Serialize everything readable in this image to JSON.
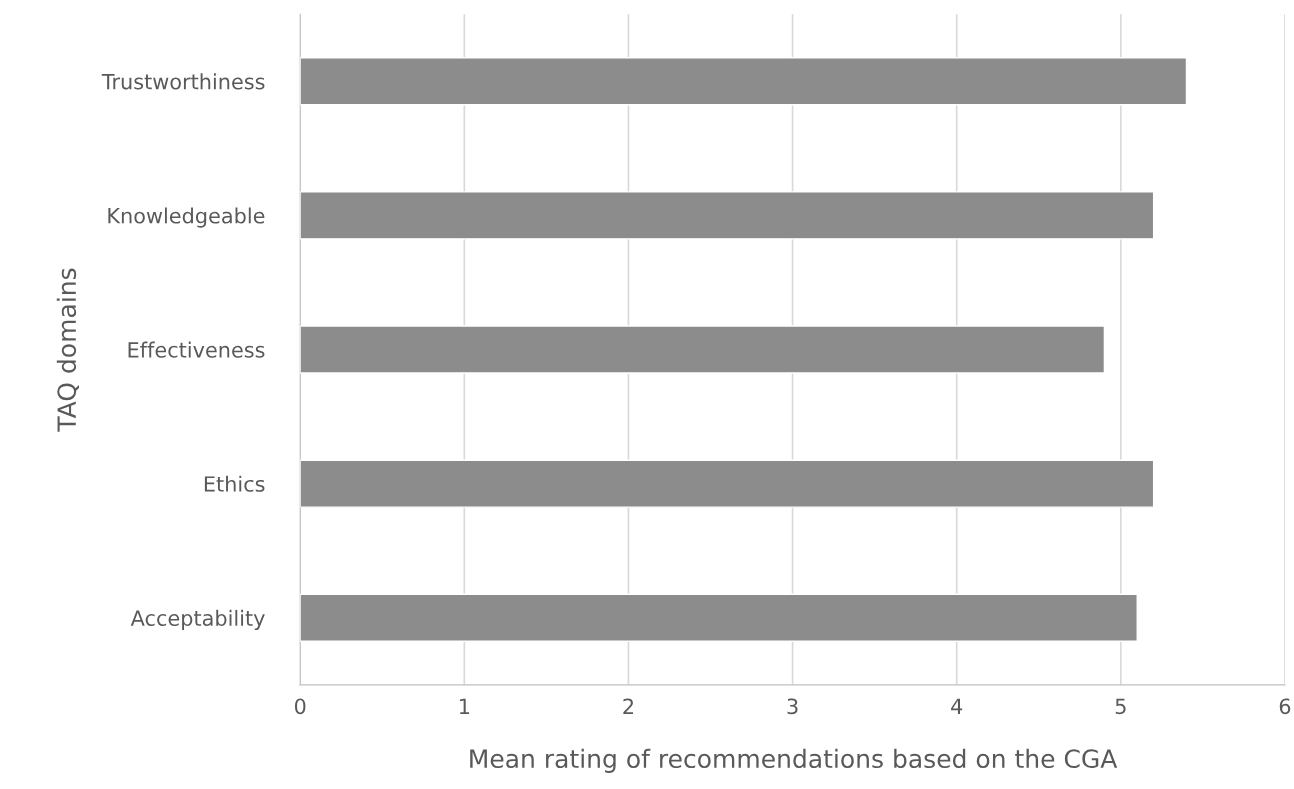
{
  "chart_data": {
    "type": "bar",
    "orientation": "horizontal",
    "categories": [
      "Trustworthiness",
      "Knowledgeable",
      "Effectiveness",
      "Ethics",
      "Acceptability"
    ],
    "values": [
      5.4,
      5.2,
      4.9,
      5.2,
      5.1
    ],
    "color": "#8c8c8c",
    "xlim": [
      0,
      6
    ],
    "xticks": [
      0,
      1,
      2,
      3,
      4,
      5,
      6
    ],
    "grid": "x",
    "xlabel": "Mean rating of recommendations based on the CGA",
    "ylabel": "TAQ domains"
  }
}
